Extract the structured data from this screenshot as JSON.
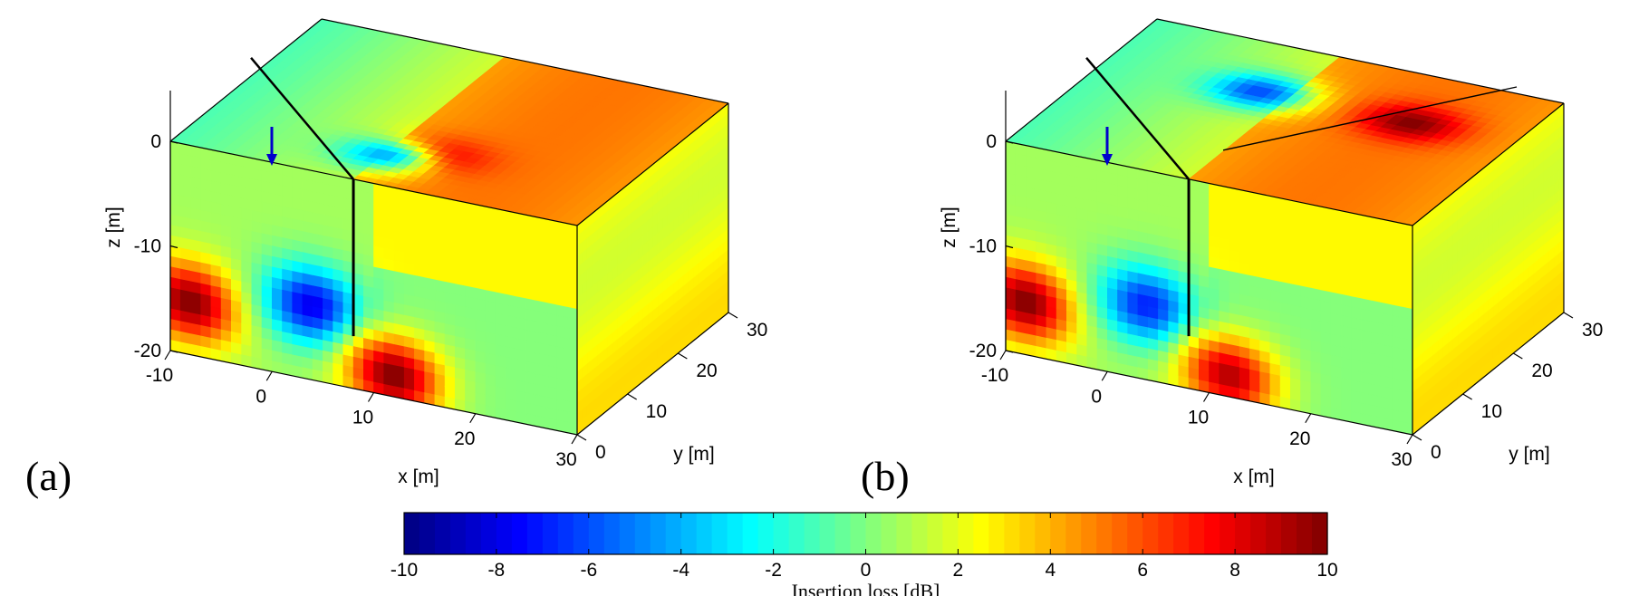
{
  "chart_data": {
    "type": "heatmap",
    "title": "",
    "colormap": "jet",
    "colorbar": {
      "label": "Insertion loss [dB]",
      "min": -10,
      "max": 10,
      "ticks": [
        "-10",
        "-8",
        "-6",
        "-4",
        "-2",
        "0",
        "2",
        "4",
        "6",
        "8",
        "10"
      ],
      "orientation": "horizontal",
      "placement": "bottom-center"
    },
    "panels": [
      {
        "label": "(a)",
        "xlabel": "x [m]",
        "ylabel": "y [m]",
        "zlabel": "z [m]",
        "xlim": [
          -10,
          30
        ],
        "ylim": [
          0,
          30
        ],
        "zlim": [
          -20,
          0
        ],
        "xticks": [
          "-10",
          "0",
          "10",
          "20",
          "30"
        ],
        "yticks": [
          "0",
          "10",
          "20",
          "30"
        ],
        "zticks": [
          "0",
          "-10",
          "-20"
        ],
        "barrier": "vertical line at x = 10 m from z = 0 to z = -15 m, along y",
        "hot_spots": [
          {
            "face": "front",
            "x": -8,
            "z": -15,
            "value": 10
          },
          {
            "face": "front",
            "x": 4,
            "z": -13,
            "value": -8
          },
          {
            "face": "front",
            "x": 12,
            "z": -18,
            "value": 10
          },
          {
            "face": "top",
            "x": 12,
            "y": 8,
            "value": 9
          },
          {
            "face": "top",
            "x": 8,
            "y": 6,
            "value": -4
          }
        ]
      },
      {
        "label": "(b)",
        "xlabel": "x [m]",
        "ylabel": "y [m]",
        "zlabel": "z [m]",
        "xlim": [
          -10,
          30
        ],
        "ylim": [
          0,
          30
        ],
        "zlim": [
          -20,
          0
        ],
        "xticks": [
          "-10",
          "0",
          "10",
          "20",
          "30"
        ],
        "yticks": [
          "0",
          "10",
          "20",
          "30"
        ],
        "zticks": [
          "0",
          "-10",
          "-20"
        ],
        "barrier": "L-shaped barrier: vertical line at x = 10 m plus wedge lines on top face",
        "hot_spots": [
          {
            "face": "front",
            "x": -8,
            "z": -15,
            "value": 10
          },
          {
            "face": "front",
            "x": 4,
            "z": -13,
            "value": -7
          },
          {
            "face": "front",
            "x": 12,
            "z": -18,
            "value": 9
          },
          {
            "face": "top",
            "x": 20,
            "y": 20,
            "value": 10
          },
          {
            "face": "top",
            "x": 5,
            "y": 20,
            "value": -6
          }
        ]
      }
    ]
  }
}
